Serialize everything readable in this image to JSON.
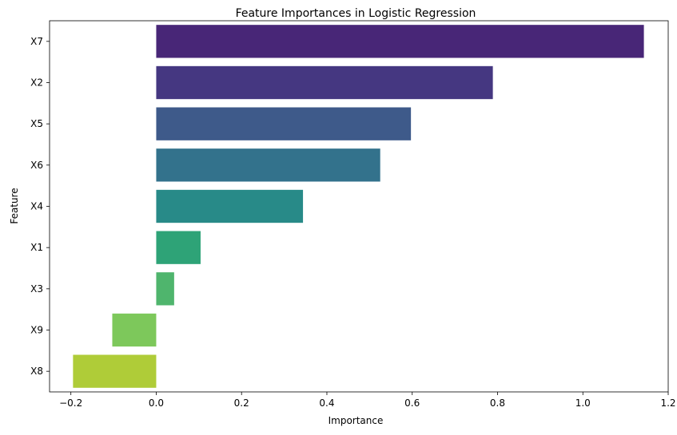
{
  "chart_data": {
    "type": "bar",
    "orientation": "horizontal",
    "title": "Feature Importances in Logistic Regression",
    "xlabel": "Importance",
    "ylabel": "Feature",
    "categories": [
      "X7",
      "X2",
      "X5",
      "X6",
      "X4",
      "X1",
      "X3",
      "X9",
      "X8"
    ],
    "values": [
      1.143,
      0.789,
      0.597,
      0.525,
      0.344,
      0.104,
      0.042,
      -0.103,
      -0.195
    ],
    "colors": [
      "#482677",
      "#453781",
      "#3e5a8a",
      "#33728c",
      "#288a88",
      "#2ea377",
      "#4fb56d",
      "#7dc85b",
      "#afcc38"
    ],
    "xlim": [
      -0.25,
      1.2
    ],
    "xticks": [
      -0.2,
      0.0,
      0.2,
      0.4,
      0.6,
      0.8,
      1.0,
      1.2
    ],
    "xtick_labels": [
      "−0.2",
      "0.0",
      "0.2",
      "0.4",
      "0.6",
      "0.8",
      "1.0",
      "1.2"
    ],
    "grid": false,
    "legend": "none"
  }
}
